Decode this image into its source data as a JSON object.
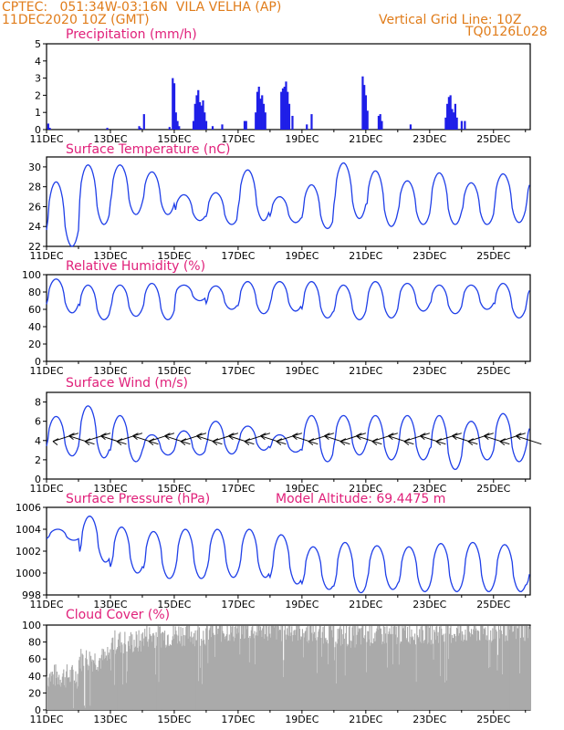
{
  "header": {
    "left_line1": "CPTEC:   051:34W-03:16N  VILA VELHA (AP)",
    "left_line2": "11DEC2020 10Z (GMT)",
    "right_line1": "Vertical Grid Line: 10Z",
    "right_line2": "TQ0126L028"
  },
  "x_labels": [
    "11DEC",
    "13DEC",
    "15DEC",
    "17DEC",
    "19DEC",
    "21DEC",
    "23DEC",
    "25DEC"
  ],
  "x_tick_days": [
    0,
    2,
    4,
    6,
    8,
    10,
    12,
    14
  ],
  "x_range_days": [
    0,
    15.15
  ],
  "chart_data": [
    {
      "type": "bar",
      "title": "Precipitation (mm/h)",
      "ylim": [
        0,
        5
      ],
      "yticks": [
        0,
        1,
        2,
        3,
        4,
        5
      ],
      "color": "#1f1fe8",
      "bars": [
        [
          0.05,
          0.35
        ],
        [
          0.1,
          0.1
        ],
        [
          1.9,
          0.1
        ],
        [
          2.9,
          0.2
        ],
        [
          2.95,
          0.1
        ],
        [
          3.05,
          0.9
        ],
        [
          3.85,
          0.15
        ],
        [
          3.95,
          3.0
        ],
        [
          4.0,
          2.7
        ],
        [
          4.05,
          1.0
        ],
        [
          4.1,
          0.5
        ],
        [
          4.15,
          0.2
        ],
        [
          4.6,
          0.5
        ],
        [
          4.65,
          1.5
        ],
        [
          4.7,
          2.0
        ],
        [
          4.75,
          2.3
        ],
        [
          4.8,
          1.6
        ],
        [
          4.85,
          1.4
        ],
        [
          4.9,
          1.7
        ],
        [
          4.95,
          1.0
        ],
        [
          5.0,
          0.5
        ],
        [
          5.5,
          0.3
        ],
        [
          5.2,
          0.2
        ],
        [
          6.2,
          0.5
        ],
        [
          6.25,
          0.5
        ],
        [
          6.55,
          1.0
        ],
        [
          6.6,
          2.2
        ],
        [
          6.65,
          2.5
        ],
        [
          6.7,
          1.8
        ],
        [
          6.75,
          2.0
        ],
        [
          6.8,
          1.5
        ],
        [
          6.85,
          1.0
        ],
        [
          7.35,
          2.2
        ],
        [
          7.4,
          2.4
        ],
        [
          7.45,
          2.5
        ],
        [
          7.5,
          2.8
        ],
        [
          7.55,
          2.2
        ],
        [
          7.6,
          1.5
        ],
        [
          7.7,
          0.8
        ],
        [
          8.3,
          0.9
        ],
        [
          8.15,
          0.3
        ],
        [
          9.9,
          3.1
        ],
        [
          9.95,
          2.6
        ],
        [
          10.0,
          2.0
        ],
        [
          10.05,
          1.1
        ],
        [
          10.4,
          0.8
        ],
        [
          10.45,
          0.9
        ],
        [
          10.5,
          0.5
        ],
        [
          11.4,
          0.3
        ],
        [
          12.5,
          0.7
        ],
        [
          12.55,
          1.5
        ],
        [
          12.6,
          1.9
        ],
        [
          12.65,
          2.0
        ],
        [
          12.7,
          1.2
        ],
        [
          12.75,
          1.0
        ],
        [
          12.8,
          1.5
        ],
        [
          12.85,
          0.7
        ],
        [
          13.0,
          0.5
        ],
        [
          13.1,
          0.5
        ]
      ]
    },
    {
      "type": "line",
      "title": "Surface Temperature (nC)",
      "ylim": [
        22,
        31
      ],
      "yticks": [
        22,
        24,
        26,
        28,
        30
      ],
      "color": "#1f3fe8",
      "daily_min": [
        22.0,
        24.2,
        25.2,
        25.2,
        24.6,
        24.2,
        24.6,
        24.4,
        23.8,
        24.8,
        24.0,
        24.2,
        24.2,
        24.2,
        24.4,
        24.7
      ],
      "daily_max": [
        28.5,
        30.2,
        30.2,
        29.5,
        27.2,
        27.4,
        29.7,
        27.0,
        28.2,
        30.4,
        29.6,
        28.6,
        29.4,
        28.4,
        29.3,
        29.0
      ]
    },
    {
      "type": "line",
      "title": "Relative Humidity (%)",
      "ylim": [
        0,
        100
      ],
      "yticks": [
        0,
        20,
        40,
        60,
        80,
        100
      ],
      "color": "#1f3fe8",
      "daily_min": [
        56,
        48,
        52,
        48,
        70,
        60,
        55,
        58,
        50,
        48,
        50,
        58,
        55,
        60,
        50,
        55
      ],
      "daily_max": [
        95,
        88,
        88,
        90,
        88,
        87,
        92,
        92,
        92,
        88,
        92,
        90,
        88,
        88,
        90,
        88
      ]
    },
    {
      "type": "line",
      "title": "Surface Wind (m/s)",
      "ylim": [
        0,
        9
      ],
      "yticks": [
        0,
        2,
        4,
        6,
        8
      ],
      "color": "#1f3fe8",
      "daily_min": [
        2.4,
        2.2,
        1.8,
        2.5,
        2.5,
        2.6,
        3.0,
        2.8,
        1.8,
        2.5,
        2.0,
        2.0,
        1.0,
        2.0,
        1.8,
        2.0
      ],
      "daily_max": [
        6.5,
        7.6,
        6.6,
        4.6,
        5.0,
        6.0,
        5.5,
        4.6,
        6.6,
        6.6,
        6.6,
        6.6,
        6.6,
        6.0,
        6.8,
        6.0
      ],
      "arrow_speed": 4.2
    },
    {
      "type": "line",
      "title": "Surface Pressure (hPa)",
      "ylim": [
        998,
        1006
      ],
      "yticks": [
        998,
        1000,
        1002,
        1004,
        1006
      ],
      "color": "#1f3fe8",
      "daily_min": [
        1003.0,
        1001.0,
        1000.0,
        999.5,
        999.5,
        999.6,
        999.6,
        999.0,
        998.5,
        998.2,
        998.5,
        998.3,
        998.3,
        998.3,
        998.3,
        998.5
      ],
      "daily_max": [
        1004.0,
        1005.2,
        1004.2,
        1003.8,
        1004.0,
        1004.0,
        1004.0,
        1003.5,
        1002.4,
        1002.8,
        1002.5,
        1002.4,
        1002.7,
        1002.8,
        1002.6,
        1000.6
      ],
      "annotation": "Model Altitude: 69.4475 m"
    },
    {
      "type": "area",
      "title": "Cloud Cover (%)",
      "ylim": [
        0,
        100
      ],
      "yticks": [
        0,
        20,
        40,
        60,
        80,
        100
      ],
      "color": "#aaaaaa",
      "daily_mean": [
        40,
        60,
        80,
        88,
        90,
        94,
        96,
        95,
        93,
        88,
        90,
        92,
        92,
        93,
        95,
        96
      ]
    }
  ]
}
